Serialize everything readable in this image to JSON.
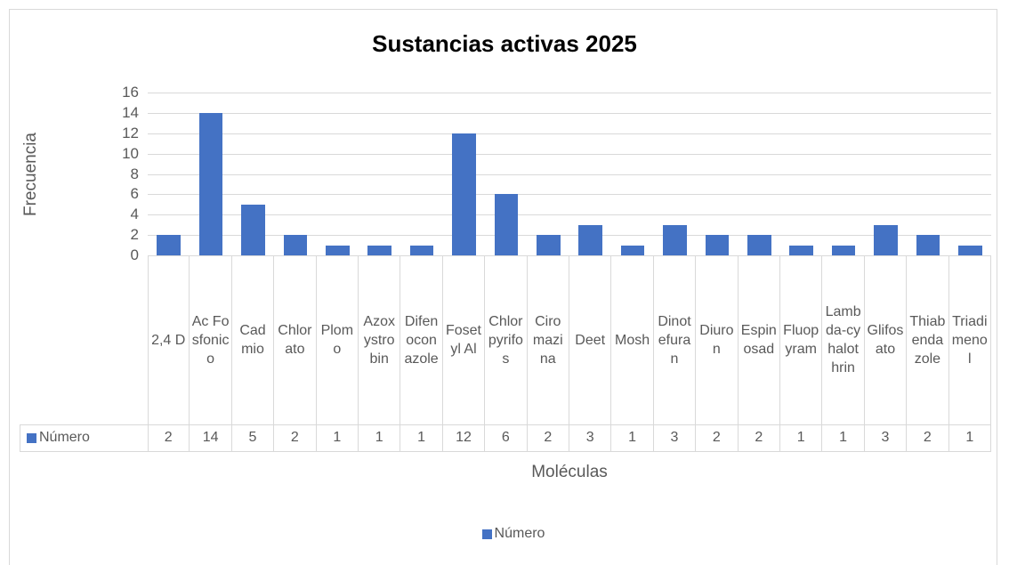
{
  "chart_data": {
    "type": "bar",
    "title": "Sustancias activas 2025",
    "x_label": "Moléculas",
    "y_label": "Frecuencia",
    "categories": [
      "2,4 D",
      "Ac Fosfonico",
      "Cadmio",
      "Chlorato",
      "Plomo",
      "Azoxystrobin",
      "Difenoconazole",
      "Fosetyl Al",
      "Chlorpyrifos",
      "Ciromazina",
      "Deet",
      "Mosh",
      "Dinotefuran",
      "Diuron",
      "Espinosad",
      "Fluopyram",
      "Lambda-cyhalothrin",
      "Glifosato",
      "Thiabendazole",
      "Triadimenol"
    ],
    "series": [
      {
        "name": "Número",
        "color": "#4472c4",
        "values": [
          2,
          14,
          5,
          2,
          1,
          1,
          1,
          12,
          6,
          2,
          3,
          1,
          3,
          2,
          2,
          1,
          1,
          3,
          2,
          1
        ]
      }
    ],
    "ylim": [
      0,
      16
    ],
    "yticks": [
      0,
      2,
      4,
      6,
      8,
      10,
      12,
      14,
      16
    ],
    "grid": true,
    "legend": "bottom",
    "data_table": true
  }
}
